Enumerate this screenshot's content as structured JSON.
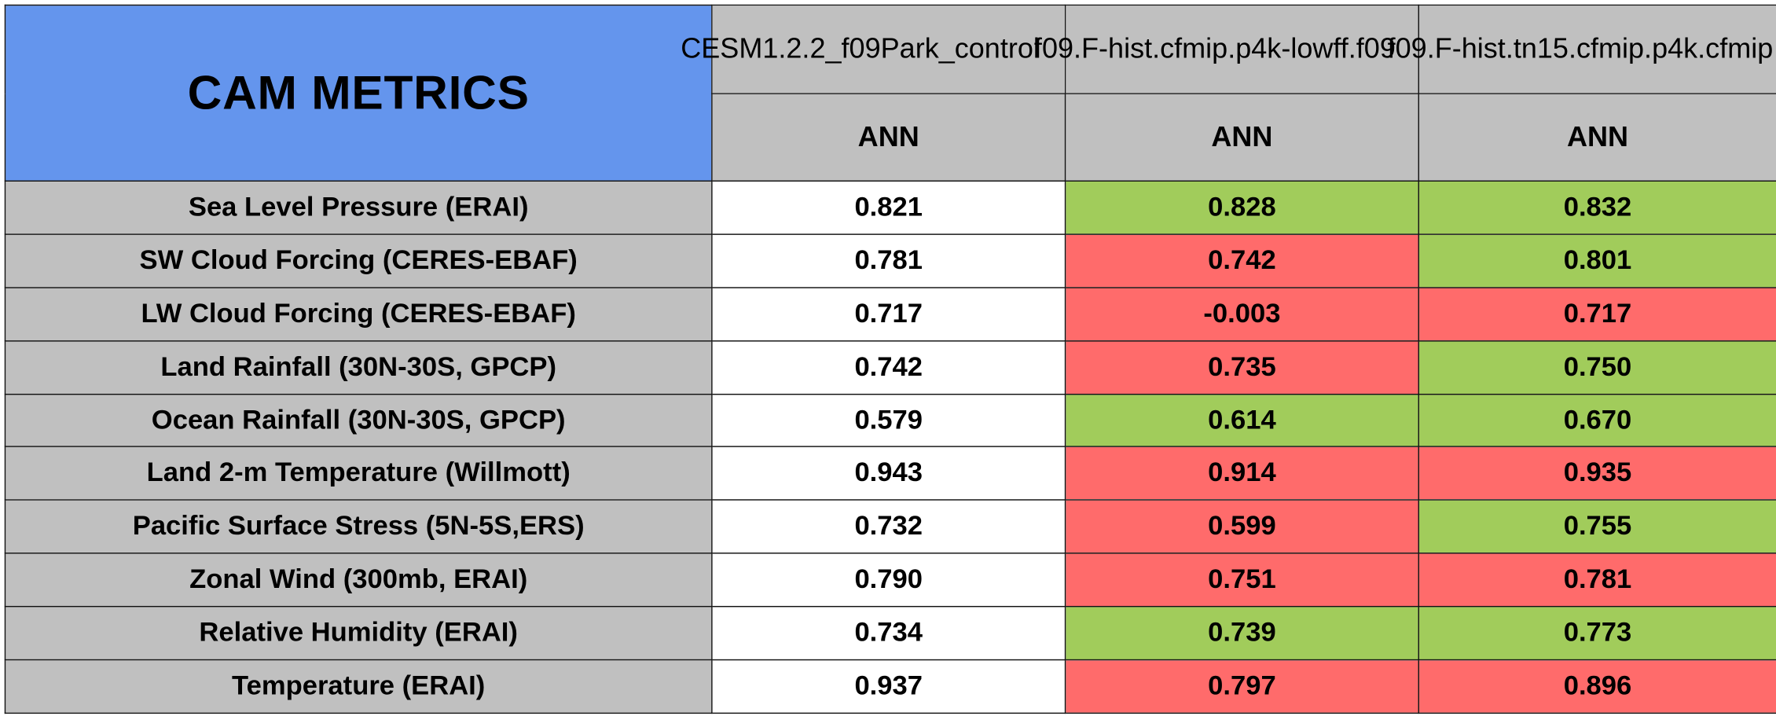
{
  "title": "CAM METRICS",
  "cases": [
    "CESM1.2.2_f09Park_control",
    "f09.F-hist.cfmip.p4k-lowff.f09",
    "f09.F-hist.tn15.cfmip.p4k.cfmip"
  ],
  "season": "ANN",
  "colors": {
    "title_bg": "#6495ed",
    "header_bg": "#c0c0c0",
    "better": "#a1cc5b",
    "worse": "#ff6b6b",
    "baseline": "#ffffff"
  },
  "rows": [
    {
      "metric": "Sea Level Pressure (ERAI)",
      "values": [
        "0.821",
        "0.828",
        "0.832"
      ],
      "status": [
        "base",
        "good",
        "good"
      ]
    },
    {
      "metric": "SW Cloud Forcing (CERES-EBAF)",
      "values": [
        "0.781",
        "0.742",
        "0.801"
      ],
      "status": [
        "base",
        "bad",
        "good"
      ]
    },
    {
      "metric": "LW Cloud Forcing (CERES-EBAF)",
      "values": [
        "0.717",
        "-0.003",
        "0.717"
      ],
      "status": [
        "base",
        "bad",
        "bad"
      ]
    },
    {
      "metric": "Land Rainfall (30N-30S, GPCP)",
      "values": [
        "0.742",
        "0.735",
        "0.750"
      ],
      "status": [
        "base",
        "bad",
        "good"
      ]
    },
    {
      "metric": "Ocean Rainfall (30N-30S, GPCP)",
      "values": [
        "0.579",
        "0.614",
        "0.670"
      ],
      "status": [
        "base",
        "good",
        "good"
      ]
    },
    {
      "metric": "Land 2-m Temperature (Willmott)",
      "values": [
        "0.943",
        "0.914",
        "0.935"
      ],
      "status": [
        "base",
        "bad",
        "bad"
      ]
    },
    {
      "metric": "Pacific Surface Stress (5N-5S,ERS)",
      "values": [
        "0.732",
        "0.599",
        "0.755"
      ],
      "status": [
        "base",
        "bad",
        "good"
      ]
    },
    {
      "metric": "Zonal Wind (300mb, ERAI)",
      "values": [
        "0.790",
        "0.751",
        "0.781"
      ],
      "status": [
        "base",
        "bad",
        "bad"
      ]
    },
    {
      "metric": "Relative Humidity (ERAI)",
      "values": [
        "0.734",
        "0.739",
        "0.773"
      ],
      "status": [
        "base",
        "good",
        "good"
      ]
    },
    {
      "metric": "Temperature (ERAI)",
      "values": [
        "0.937",
        "0.797",
        "0.896"
      ],
      "status": [
        "base",
        "bad",
        "bad"
      ]
    }
  ]
}
